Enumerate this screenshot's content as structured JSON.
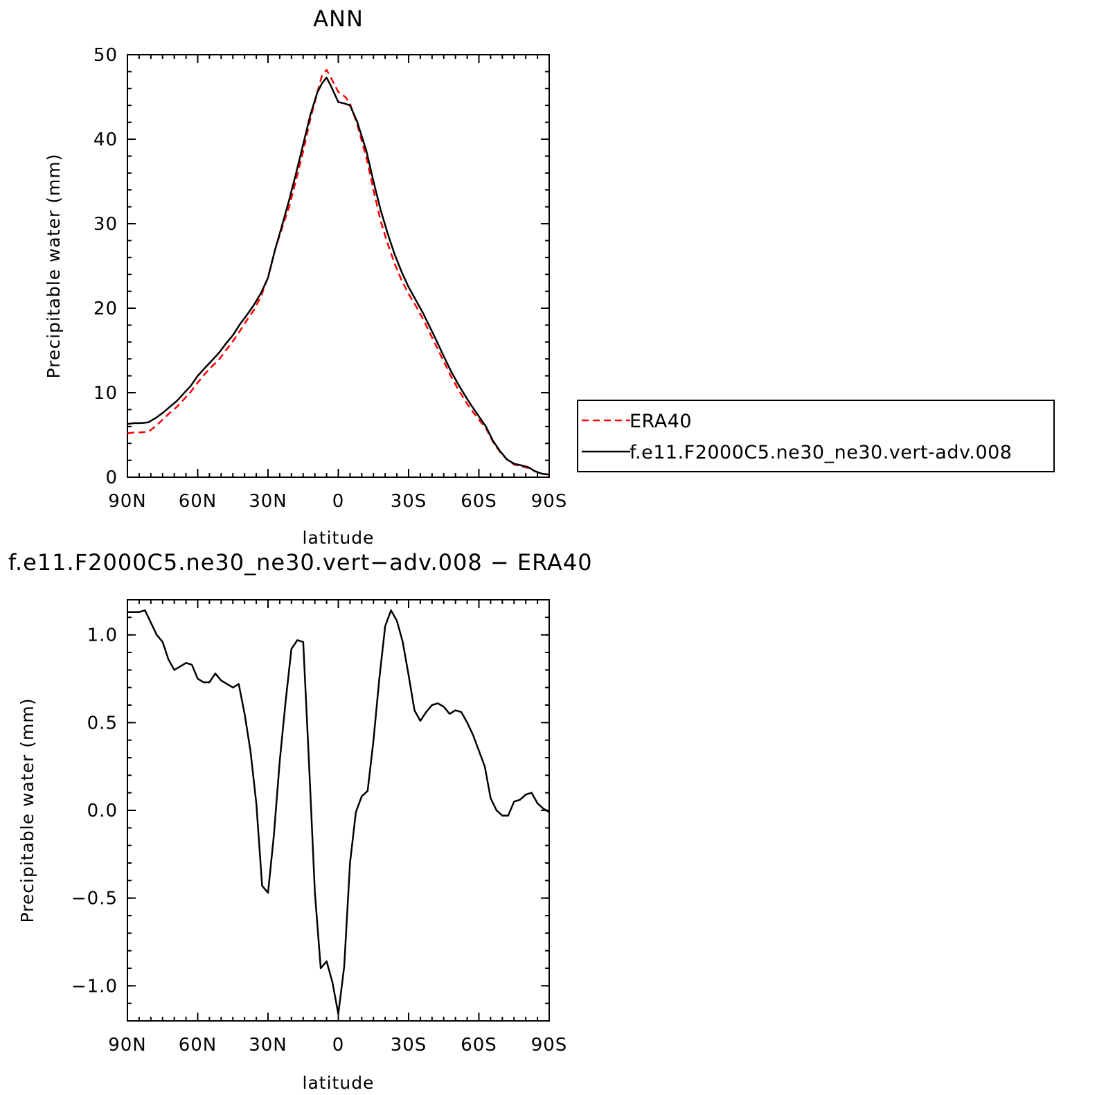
{
  "chart_data": [
    {
      "type": "line",
      "title": "ANN",
      "xlabel": "latitude",
      "ylabel": "Precipitable water (mm)",
      "xlim": [
        90,
        -90
      ],
      "ylim": [
        0,
        50
      ],
      "x_ticks": [
        {
          "value": 90,
          "label": "90N"
        },
        {
          "value": 60,
          "label": "60N"
        },
        {
          "value": 30,
          "label": "30N"
        },
        {
          "value": 0,
          "label": "0"
        },
        {
          "value": -30,
          "label": "30S"
        },
        {
          "value": -60,
          "label": "60S"
        },
        {
          "value": -90,
          "label": "90S"
        }
      ],
      "y_ticks": [
        {
          "value": 0,
          "label": "0"
        },
        {
          "value": 10,
          "label": "10"
        },
        {
          "value": 20,
          "label": "20"
        },
        {
          "value": 30,
          "label": "30"
        },
        {
          "value": 40,
          "label": "40"
        },
        {
          "value": 50,
          "label": "50"
        }
      ],
      "legend": {
        "placement": "right",
        "entries": [
          "ERA40",
          "f.e11.F2000C5.ne30_ne30.vert-adv.008"
        ]
      },
      "series": [
        {
          "name": "ERA40",
          "color": "#ff0000",
          "style": "dashed",
          "points": [
            [
              90,
              5.2
            ],
            [
              87,
              5.3
            ],
            [
              84,
              5.3
            ],
            [
              81,
              5.4
            ],
            [
              78,
              6
            ],
            [
              75,
              6.8
            ],
            [
              72,
              7.6
            ],
            [
              69,
              8.3
            ],
            [
              66,
              9.2
            ],
            [
              63,
              10.1
            ],
            [
              60,
              11.2
            ],
            [
              57,
              12.2
            ],
            [
              54,
              13.1
            ],
            [
              51,
              13.9
            ],
            [
              48,
              15
            ],
            [
              45,
              16.1
            ],
            [
              42,
              17.3
            ],
            [
              39,
              18.6
            ],
            [
              36,
              19.8
            ],
            [
              33,
              21.4
            ],
            [
              30,
              23.7
            ],
            [
              27,
              26.9
            ],
            [
              24,
              29.5
            ],
            [
              21,
              32
            ],
            [
              18,
              35.2
            ],
            [
              15,
              38.6
            ],
            [
              12,
              42.3
            ],
            [
              9,
              45.5
            ],
            [
              7,
              47.5
            ],
            [
              5,
              48.2
            ],
            [
              3,
              47.2
            ],
            [
              0,
              45.6
            ],
            [
              -3,
              45
            ],
            [
              -5,
              44.2
            ],
            [
              -8,
              41.8
            ],
            [
              -12,
              37.8
            ],
            [
              -15,
              34
            ],
            [
              -18,
              30.4
            ],
            [
              -21,
              27.7
            ],
            [
              -24,
              25.3
            ],
            [
              -27,
              23.3
            ],
            [
              -30,
              21.7
            ],
            [
              -33,
              20.3
            ],
            [
              -36,
              18.8
            ],
            [
              -39,
              17.1
            ],
            [
              -42,
              15.4
            ],
            [
              -45,
              13.7
            ],
            [
              -48,
              12
            ],
            [
              -51,
              10.5
            ],
            [
              -54,
              9.1
            ],
            [
              -57,
              7.9
            ],
            [
              -60,
              6.8
            ],
            [
              -63,
              5.8
            ],
            [
              -66,
              4.2
            ],
            [
              -69,
              3
            ],
            [
              -72,
              2.1
            ],
            [
              -75,
              1.5
            ],
            [
              -78,
              1.3
            ],
            [
              -81,
              1.1
            ],
            [
              -84,
              0.7
            ],
            [
              -87,
              0.4
            ],
            [
              -90,
              0.3
            ]
          ]
        },
        {
          "name": "f.e11.F2000C5.ne30_ne30.vert-adv.008",
          "color": "#000000",
          "style": "solid",
          "points": [
            [
              90,
              6.3
            ],
            [
              87,
              6.4
            ],
            [
              84,
              6.4
            ],
            [
              81,
              6.5
            ],
            [
              78,
              7
            ],
            [
              75,
              7.6
            ],
            [
              72,
              8.3
            ],
            [
              69,
              9
            ],
            [
              66,
              9.9
            ],
            [
              63,
              10.8
            ],
            [
              60,
              12
            ],
            [
              57,
              12.9
            ],
            [
              54,
              13.8
            ],
            [
              51,
              14.7
            ],
            [
              48,
              15.8
            ],
            [
              45,
              16.8
            ],
            [
              42,
              18.1
            ],
            [
              39,
              19.2
            ],
            [
              36,
              20.4
            ],
            [
              33,
              21.8
            ],
            [
              30,
              23.6
            ],
            [
              27,
              26.9
            ],
            [
              24,
              29.8
            ],
            [
              21,
              32.8
            ],
            [
              18,
              36
            ],
            [
              15,
              39.4
            ],
            [
              12,
              42.8
            ],
            [
              9,
              45.5
            ],
            [
              7,
              46.6
            ],
            [
              5,
              47.3
            ],
            [
              3,
              46.2
            ],
            [
              0,
              44.4
            ],
            [
              -3,
              44.2
            ],
            [
              -5,
              44
            ],
            [
              -8,
              42.1
            ],
            [
              -12,
              38.6
            ],
            [
              -15,
              35
            ],
            [
              -18,
              31.7
            ],
            [
              -21,
              28.9
            ],
            [
              -24,
              26.4
            ],
            [
              -27,
              24.3
            ],
            [
              -30,
              22.5
            ],
            [
              -33,
              21
            ],
            [
              -36,
              19.5
            ],
            [
              -39,
              17.8
            ],
            [
              -42,
              16.1
            ],
            [
              -45,
              14.3
            ],
            [
              -48,
              12.6
            ],
            [
              -51,
              11.1
            ],
            [
              -54,
              9.7
            ],
            [
              -57,
              8.4
            ],
            [
              -60,
              7.2
            ],
            [
              -63,
              6
            ],
            [
              -66,
              4.3
            ],
            [
              -69,
              3.1
            ],
            [
              -72,
              2.1
            ],
            [
              -75,
              1.6
            ],
            [
              -78,
              1.4
            ],
            [
              -81,
              1.2
            ],
            [
              -84,
              0.7
            ],
            [
              -87,
              0.4
            ],
            [
              -90,
              0.3
            ]
          ]
        }
      ]
    },
    {
      "type": "line",
      "title": "f.e11.F2000C5.ne30_ne30.vert−adv.008 − ERA40",
      "xlabel": "latitude",
      "ylabel": "Precipitable water (mm)",
      "xlim": [
        90,
        -90
      ],
      "ylim": [
        -1.2,
        1.2
      ],
      "x_ticks": [
        {
          "value": 90,
          "label": "90N"
        },
        {
          "value": 60,
          "label": "60N"
        },
        {
          "value": 30,
          "label": "30N"
        },
        {
          "value": 0,
          "label": "0"
        },
        {
          "value": -30,
          "label": "30S"
        },
        {
          "value": -60,
          "label": "60S"
        },
        {
          "value": -90,
          "label": "90S"
        }
      ],
      "y_ticks": [
        {
          "value": -1.0,
          "label": "−1.0"
        },
        {
          "value": -0.5,
          "label": "−0.5"
        },
        {
          "value": 0.0,
          "label": "0.0"
        },
        {
          "value": 0.5,
          "label": "0.5"
        },
        {
          "value": 1.0,
          "label": "1.0"
        }
      ],
      "series": [
        {
          "color": "#000000",
          "style": "solid",
          "points": [
            [
              90,
              1.13
            ],
            [
              87.5,
              1.13
            ],
            [
              85,
              1.13
            ],
            [
              82.5,
              1.14
            ],
            [
              80,
              1.07
            ],
            [
              77.5,
              1
            ],
            [
              75,
              0.96
            ],
            [
              72.5,
              0.86
            ],
            [
              70,
              0.8
            ],
            [
              67.5,
              0.82
            ],
            [
              65,
              0.84
            ],
            [
              62.5,
              0.83
            ],
            [
              60,
              0.75
            ],
            [
              57.5,
              0.73
            ],
            [
              55,
              0.73
            ],
            [
              52.5,
              0.78
            ],
            [
              50,
              0.74
            ],
            [
              47.5,
              0.72
            ],
            [
              45,
              0.7
            ],
            [
              42.5,
              0.72
            ],
            [
              40,
              0.55
            ],
            [
              37.5,
              0.34
            ],
            [
              35,
              0.04
            ],
            [
              32.5,
              -0.43
            ],
            [
              30,
              -0.47
            ],
            [
              27.5,
              -0.14
            ],
            [
              25,
              0.28
            ],
            [
              22.5,
              0.62
            ],
            [
              20,
              0.92
            ],
            [
              17.5,
              0.97
            ],
            [
              15,
              0.96
            ],
            [
              12.5,
              0.27
            ],
            [
              10,
              -0.47
            ],
            [
              7.5,
              -0.9
            ],
            [
              5,
              -0.86
            ],
            [
              2.5,
              -0.98
            ],
            [
              0,
              -1.16
            ],
            [
              -2.5,
              -0.89
            ],
            [
              -5,
              -0.3
            ],
            [
              -7.5,
              -0.01
            ],
            [
              -10,
              0.08
            ],
            [
              -12.5,
              0.11
            ],
            [
              -15,
              0.4
            ],
            [
              -17.5,
              0.75
            ],
            [
              -20,
              1.05
            ],
            [
              -22.5,
              1.14
            ],
            [
              -25,
              1.08
            ],
            [
              -27.5,
              0.96
            ],
            [
              -30,
              0.77
            ],
            [
              -32.5,
              0.57
            ],
            [
              -35,
              0.51
            ],
            [
              -37.5,
              0.56
            ],
            [
              -40,
              0.6
            ],
            [
              -42.5,
              0.61
            ],
            [
              -45,
              0.59
            ],
            [
              -47.5,
              0.55
            ],
            [
              -50,
              0.57
            ],
            [
              -52.5,
              0.56
            ],
            [
              -55,
              0.5
            ],
            [
              -57.5,
              0.43
            ],
            [
              -60,
              0.34
            ],
            [
              -62.5,
              0.25
            ],
            [
              -65,
              0.07
            ],
            [
              -67.5,
              0
            ],
            [
              -70,
              -0.03
            ],
            [
              -72.5,
              -0.03
            ],
            [
              -75,
              0.05
            ],
            [
              -77.5,
              0.06
            ],
            [
              -80,
              0.09
            ],
            [
              -82.5,
              0.1
            ],
            [
              -85,
              0.04
            ],
            [
              -87.5,
              0.01
            ],
            [
              -90,
              -0.01
            ]
          ]
        }
      ]
    }
  ]
}
